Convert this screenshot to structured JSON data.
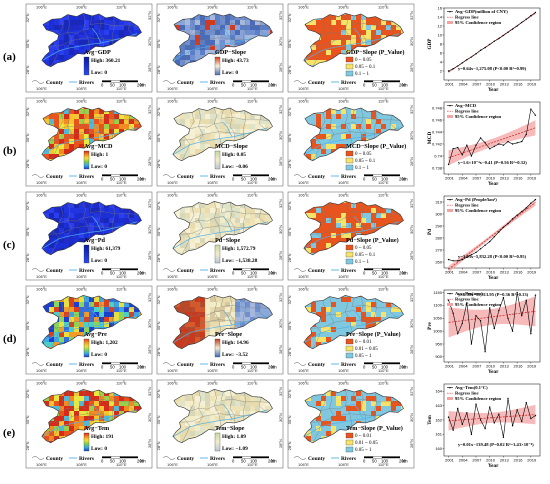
{
  "rows": [
    {
      "label": "(a)",
      "avg": {
        "title": "Avg−GDP",
        "high": "High: 360.21",
        "low": "Low: 0",
        "scheme": "blue"
      },
      "slope": {
        "title": "GDP−Slope",
        "high": "High: 43.73",
        "low": "Low: 0",
        "scheme": "slope_blue"
      },
      "pvalue": {
        "title": "GDP−Slope (P_Value)",
        "classes": [
          "0 ~ 0.05",
          "0.05 ~ 0.1",
          "0.1 ~ 1"
        ],
        "colors": [
          "#e8541e",
          "#f5e36a",
          "#7fc8e0"
        ],
        "dominant": 0
      }
    },
    {
      "label": "(b)",
      "avg": {
        "title": "Avg−MCD",
        "high": "High: 1",
        "low": "Low: 0",
        "scheme": "rainbow_red"
      },
      "slope": {
        "title": "MCD−Slope",
        "high": "High: 0.05",
        "low": "Low: −0.06",
        "scheme": "beige"
      },
      "pvalue": {
        "title": "MCD−Slope (P_Value)",
        "classes": [
          "0 ~ 0.05",
          "0.05 ~ 0.1",
          "0.1 ~ 1"
        ],
        "colors": [
          "#e8541e",
          "#f5e36a",
          "#7fc8e0"
        ],
        "dominant": 2
      }
    },
    {
      "label": "(c)",
      "avg": {
        "title": "Avg−Pd",
        "high": "High: 61,379",
        "low": "Low: 0",
        "scheme": "blue"
      },
      "slope": {
        "title": "Pd−Slope",
        "high": "High: 1,572.79",
        "low": "Low: −1,538.28",
        "scheme": "beige"
      },
      "pvalue": {
        "title": "Pd−Slope (P_Value)",
        "classes": [
          "0 ~ 0.05",
          "0.05 ~ 0.1",
          "0.1 ~ 1"
        ],
        "colors": [
          "#e8541e",
          "#f5e36a",
          "#7fc8e0"
        ],
        "dominant": 0
      }
    },
    {
      "label": "(d)",
      "avg": {
        "title": "Avg−Pre",
        "high": "High: 1,202",
        "low": "Low: 0",
        "scheme": "rainbow_blue"
      },
      "slope": {
        "title": "Pre−Slope",
        "high": "High: 14.96",
        "low": "Low: −3.52",
        "scheme": "diverge"
      },
      "pvalue": {
        "title": "Pre−Slope (P_Value)",
        "classes": [
          "0 ~ 0.01",
          "0.01 ~ 0.05",
          "0.05 ~ 1"
        ],
        "colors": [
          "#e8541e",
          "#f5e36a",
          "#7fc8e0"
        ],
        "dominant": 2
      }
    },
    {
      "label": "(e)",
      "avg": {
        "title": "Avg−Tem",
        "high": "High: 191",
        "low": "Low: 0",
        "scheme": "rainbow_red"
      },
      "slope": {
        "title": "Tem−Slope",
        "high": "High: 1.09",
        "low": "Low: −1.09",
        "scheme": "beige"
      },
      "pvalue": {
        "title": "Tem−Slope (P_Value)",
        "classes": [
          "0 ~ 0.01",
          "0.01 ~ 0.05",
          "0.05 ~ 1"
        ],
        "colors": [
          "#e8541e",
          "#f5e36a",
          "#7fc8e0"
        ],
        "dominant": 2
      }
    }
  ],
  "map_common": {
    "lon_ticks": [
      "106°E",
      "108°E",
      "110°E"
    ],
    "lat_ticks": [
      "32°N",
      "30°N",
      "28°N"
    ],
    "county_label": "County",
    "rivers_label": "Rivers",
    "scale_labels": [
      "0",
      "50",
      "100",
      "200",
      "km"
    ]
  },
  "chart_data": [
    {
      "type": "line",
      "legend": [
        "Avg−GDP(million of CNY)",
        "Regress line",
        "95% Confidence region"
      ],
      "equation": "y=0.64x−1,275.08 (P<0.00 R²=0.99)",
      "ylabel": "GDP",
      "xlabel": "Year",
      "x_ticks": [
        2001,
        2004,
        2007,
        2010,
        2013,
        2016,
        2019
      ],
      "y_ticks": [
        2,
        4,
        6,
        8,
        10,
        12,
        14,
        16
      ],
      "ylim": [
        0,
        16
      ],
      "x": [
        2001,
        2002,
        2003,
        2004,
        2005,
        2006,
        2007,
        2008,
        2009,
        2010,
        2011,
        2012,
        2013,
        2014,
        2015,
        2016,
        2017,
        2018,
        2019,
        2020
      ],
      "values": [
        2.0,
        2.5,
        3.1,
        3.8,
        4.5,
        5.1,
        5.8,
        6.6,
        7.2,
        7.9,
        8.6,
        9.2,
        9.9,
        10.6,
        11.3,
        12.0,
        12.8,
        13.5,
        14.3,
        15.0
      ]
    },
    {
      "type": "line",
      "legend": [
        "Avg−MCD",
        "Regress line",
        "95% Confidence region"
      ],
      "equation": "y=1.6×10⁻⁴x−0.41 (P=0.56 R²=0.32)",
      "ylabel": "MCD",
      "xlabel": "Year",
      "x_ticks": [
        2001,
        2004,
        2007,
        2010,
        2013,
        2016,
        2019
      ],
      "y_ticks": [
        0.738,
        0.74,
        0.742,
        0.744,
        0.746,
        0.748
      ],
      "ylim": [
        0.737,
        0.749
      ],
      "x": [
        2001,
        2002,
        2003,
        2004,
        2005,
        2006,
        2007,
        2008,
        2009,
        2010,
        2011,
        2012,
        2013,
        2014,
        2015,
        2016,
        2017,
        2018,
        2019,
        2020
      ],
      "values": [
        0.7386,
        0.7412,
        0.7414,
        0.7402,
        0.7418,
        0.74,
        0.7418,
        0.743,
        0.7422,
        0.7412,
        0.7416,
        0.742,
        0.7418,
        0.7424,
        0.742,
        0.7422,
        0.7424,
        0.7436,
        0.7478,
        0.7468
      ]
    },
    {
      "type": "line",
      "legend": [
        "Avg−Pd (People/km²)",
        "Regress line",
        "95% Confidence region"
      ],
      "equation": "y=3.03x−5,832.28 (P<0.00 R²=0.95)",
      "ylabel": "Pd",
      "xlabel": "Year",
      "x_ticks": [
        2001,
        2004,
        2007,
        2010,
        2013,
        2016,
        2019
      ],
      "y_ticks": [
        260,
        270,
        280,
        290,
        300,
        310
      ],
      "ylim": [
        255,
        315
      ],
      "x": [
        2001,
        2002,
        2003,
        2004,
        2005,
        2006,
        2007,
        2008,
        2009,
        2010,
        2011,
        2012,
        2013,
        2014,
        2015,
        2016,
        2017,
        2018,
        2019,
        2020
      ],
      "values": [
        262,
        261,
        261,
        262,
        264,
        266,
        268,
        271,
        274,
        277,
        281,
        285,
        289,
        292,
        296,
        299,
        302,
        305,
        309,
        312
      ]
    },
    {
      "type": "line",
      "legend": [
        "Avg−Pre(mm)",
        "Regress line",
        "95% Confidence region"
      ],
      "equation": "y=6.38x−11,813.95 (P=0.36 R²=0.13)",
      "ylabel": "Pre",
      "xlabel": "Year",
      "x_ticks": [
        2001,
        2004,
        2007,
        2010,
        2013,
        2016,
        2019
      ],
      "y_ticks": [
        900,
        950,
        1000,
        1050,
        1100,
        1150
      ],
      "ylim": [
        880,
        1160
      ],
      "x": [
        2001,
        2002,
        2003,
        2004,
        2005,
        2006,
        2007,
        2008,
        2009,
        2010,
        2011,
        2012,
        2013,
        2014,
        2015,
        2016,
        2017,
        2018,
        2019,
        2020
      ],
      "values": [
        1120,
        1070,
        990,
        1030,
        1110,
        950,
        1060,
        1040,
        920,
        1090,
        1010,
        1080,
        1130,
        1050,
        1000,
        1150,
        1060,
        1120,
        990,
        1140
      ]
    },
    {
      "type": "line",
      "legend": [
        "Avg−Tem(0.1°C)",
        "Regress line",
        "95% Confidence region"
      ],
      "equation": "y=0.01x−139.48 (P=0.02 R²=3.43×10⁻⁴)",
      "ylabel": "Tem",
      "xlabel": "Year",
      "x_ticks": [
        2001,
        2004,
        2007,
        2010,
        2013,
        2016,
        2019
      ],
      "y_ticks": [
        160,
        161,
        162,
        163,
        164
      ],
      "ylim": [
        159.5,
        164.5
      ],
      "x": [
        2001,
        2002,
        2003,
        2004,
        2005,
        2006,
        2007,
        2008,
        2009,
        2010,
        2011,
        2012,
        2013,
        2014,
        2015,
        2016,
        2017,
        2018,
        2019,
        2020
      ],
      "values": [
        162.2,
        161.3,
        162.8,
        161.7,
        162.5,
        161.0,
        163.1,
        162.0,
        161.4,
        162.9,
        161.8,
        162.4,
        160.8,
        163.5,
        161.6,
        162.7,
        161.9,
        163.2,
        162.1,
        162.3
      ]
    }
  ]
}
